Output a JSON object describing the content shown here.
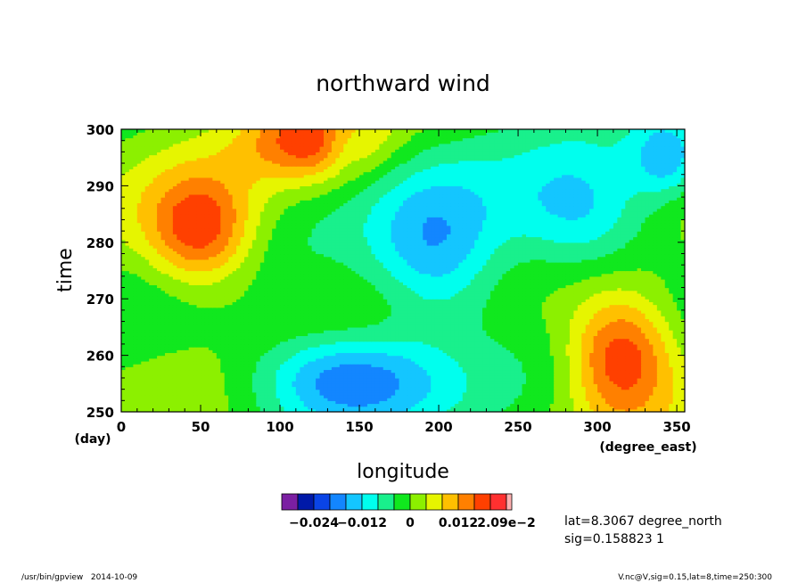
{
  "chart_data": {
    "type": "heatmap",
    "title": "northward wind",
    "xlabel": "longitude",
    "ylabel": "time",
    "x_unit": "(degree_east)",
    "y_unit": "(day)",
    "xlim": [
      0,
      355
    ],
    "ylim": [
      250,
      300
    ],
    "xticks": [
      "0",
      "50",
      "100",
      "150",
      "200",
      "250",
      "300",
      "350"
    ],
    "xtick_values": [
      0,
      50,
      100,
      150,
      200,
      250,
      300,
      350
    ],
    "yticks": [
      "250",
      "260",
      "270",
      "280",
      "290",
      "300"
    ],
    "ytick_values": [
      250,
      260,
      270,
      280,
      290,
      300
    ],
    "colorbar": {
      "levels": [
        -0.028,
        -0.024,
        -0.02,
        -0.016,
        -0.012,
        -0.008,
        -0.004,
        0,
        0.004,
        0.008,
        0.012,
        0.016,
        0.02,
        0.0209
      ],
      "colors": [
        "#7b1fa2",
        "#0019a8",
        "#0a44e6",
        "#1386ff",
        "#14c6ff",
        "#00ffee",
        "#19f08c",
        "#10e81e",
        "#8cf000",
        "#e6f500",
        "#ffc000",
        "#ff8000",
        "#ff4000",
        "#ff3030",
        "#ffb0b0"
      ],
      "tick_labels": [
        {
          "label": "−0.024",
          "value": -0.024
        },
        {
          "label": "−0.012",
          "value": -0.012
        },
        {
          "label": "0",
          "value": 0
        },
        {
          "label": "0.012",
          "value": 0.012
        },
        {
          "label": "2.09e−2",
          "value": 0.0209
        }
      ]
    },
    "annotations": [
      "lat=8.3067 degree_north",
      "sig=0.158823 1"
    ]
  },
  "footer": {
    "left_program": "/usr/bin/gpview",
    "left_date": "2014-10-09",
    "right": "V.nc@V,sig=0.15,lat=8,time=250:300"
  }
}
